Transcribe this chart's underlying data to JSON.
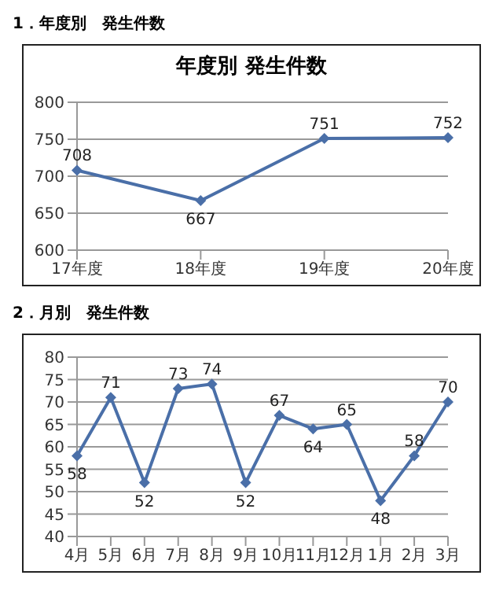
{
  "chart_data": [
    {
      "type": "line",
      "title": "年度別 発生件数",
      "annotations": [
        "1．年度別　発生件数"
      ],
      "categories": [
        "17年度",
        "18年度",
        "19年度",
        "20年度"
      ],
      "series": [
        {
          "color": "#4a6fa8",
          "values": [
            708,
            667,
            751,
            752
          ]
        }
      ],
      "ylim": [
        600,
        800
      ],
      "yticks": [
        600,
        650,
        700,
        750,
        800
      ],
      "grid": "y",
      "marker": "diamond",
      "data_labels": true,
      "legend": false
    },
    {
      "type": "line",
      "annotations": [
        "2．月別　発生件数"
      ],
      "categories": [
        "4月",
        "5月",
        "6月",
        "7月",
        "8月",
        "9月",
        "10月",
        "11月",
        "12月",
        "1月",
        "2月",
        "3月"
      ],
      "series": [
        {
          "color": "#4a6fa8",
          "values": [
            58,
            71,
            52,
            73,
            74,
            52,
            67,
            64,
            65,
            48,
            58,
            70
          ]
        }
      ],
      "ylim": [
        40,
        80
      ],
      "yticks": [
        40,
        45,
        50,
        55,
        60,
        65,
        70,
        75,
        80
      ],
      "grid": "y",
      "marker": "diamond",
      "data_labels": true,
      "legend": false
    }
  ]
}
